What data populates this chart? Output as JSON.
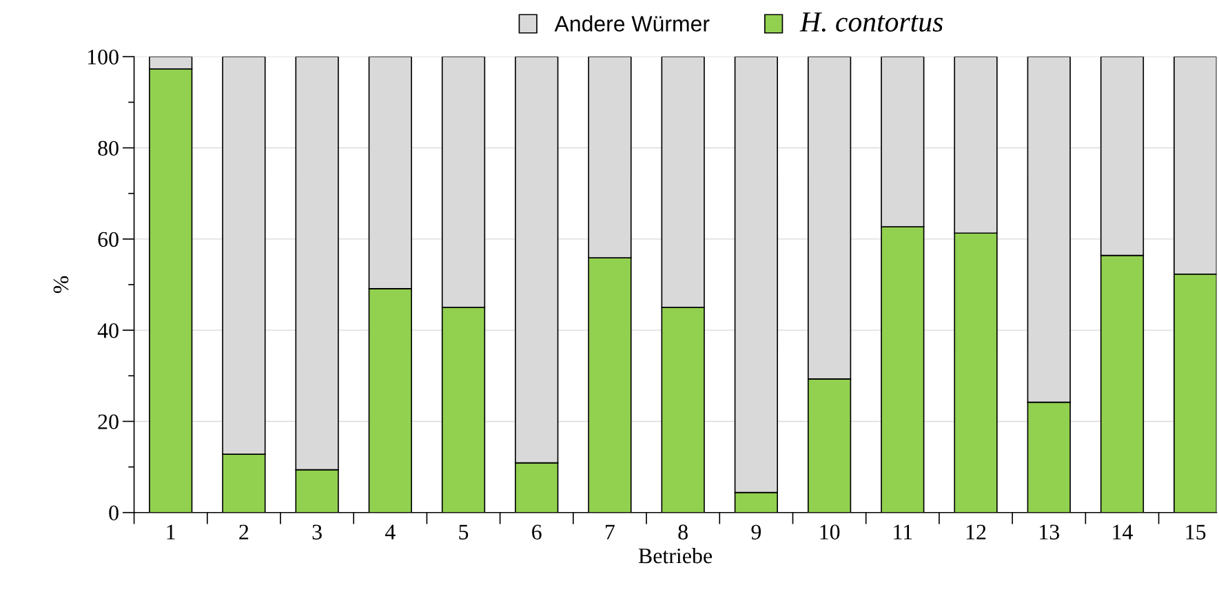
{
  "chart_data": {
    "type": "bar",
    "stacked": true,
    "xlabel": "Betriebe",
    "ylabel": "%",
    "categories": [
      "1",
      "2",
      "3",
      "4",
      "5",
      "6",
      "7",
      "8",
      "9",
      "10",
      "11",
      "12",
      "13",
      "14",
      "15"
    ],
    "series": [
      {
        "name": "H. contortus",
        "color": "#92d050",
        "values": [
          97.3,
          12.8,
          9.4,
          49.1,
          45.0,
          10.9,
          55.9,
          45.0,
          4.4,
          29.3,
          62.7,
          61.3,
          24.2,
          56.4,
          52.3
        ]
      },
      {
        "name": "Andere Würmer",
        "color": "#d9d9d9",
        "values": [
          2.7,
          87.2,
          90.6,
          50.9,
          55.0,
          89.1,
          44.1,
          55.0,
          95.6,
          70.7,
          37.3,
          38.7,
          75.8,
          43.6,
          47.7
        ]
      }
    ],
    "ylim": [
      0,
      100
    ],
    "yticks": [
      0,
      20,
      40,
      60,
      80,
      100
    ],
    "grid": "y",
    "legend": "top"
  }
}
